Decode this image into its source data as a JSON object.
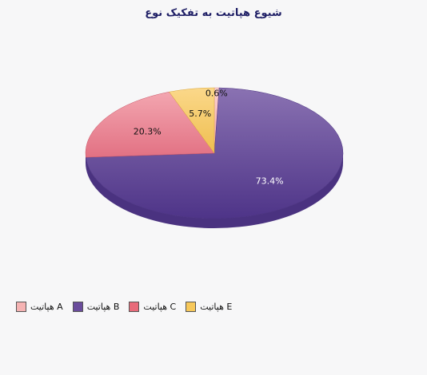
{
  "chart_data": {
    "type": "pie",
    "title": "شیوع هپاتیت به تفکیک نوع",
    "legend_position": "bottom-left",
    "slices": [
      {
        "name": "هپاتیت A",
        "value": 0.6,
        "label": "0.6%",
        "color": "#f5b3b3"
      },
      {
        "name": "هپاتیت B",
        "value": 73.4,
        "label": "73.4%",
        "color": "#6a4c9c"
      },
      {
        "name": "هپاتیت C",
        "value": 20.3,
        "label": "20.3%",
        "color": "#e86b7a"
      },
      {
        "name": "هپاتیت E",
        "value": 5.7,
        "label": "5.7%",
        "color": "#f7c85a"
      }
    ]
  }
}
